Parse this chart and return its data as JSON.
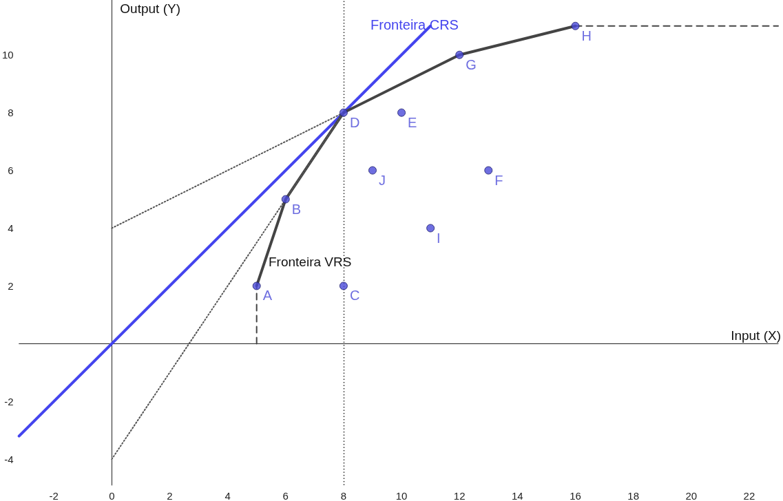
{
  "chart_data": {
    "type": "line",
    "xlabel": "Input (X)",
    "ylabel": "Output (Y)",
    "xlim": [
      -3.2,
      23
    ],
    "ylim": [
      -4.9,
      11.9
    ],
    "xticks": [
      -2,
      0,
      2,
      4,
      6,
      8,
      10,
      12,
      14,
      16,
      18,
      20,
      22
    ],
    "yticks": [
      -4,
      -2,
      2,
      4,
      6,
      8,
      10
    ],
    "grid": false,
    "legend": false,
    "series": [
      {
        "name": "Fronteira CRS",
        "color": "#4444ee",
        "x": [
          -3.2,
          11
        ],
        "values": [
          -3.2,
          11
        ],
        "marker": "none",
        "line_style": "solid"
      },
      {
        "color": "#444444",
        "x": [
          5,
          6,
          8,
          12,
          16
        ],
        "values": [
          2,
          5,
          8,
          10,
          11
        ],
        "marker": "none",
        "line_style": "solid"
      },
      {
        "type": "line",
        "color": "#444444",
        "x": [
          16,
          23
        ],
        "values": [
          11,
          11
        ],
        "marker": "none",
        "line_style": "dashed"
      },
      {
        "type": "line",
        "color": "#444444",
        "x": [
          5,
          5
        ],
        "values": [
          0,
          2
        ],
        "marker": "none",
        "line_style": "dashed"
      },
      {
        "type": "line",
        "color": "#555555",
        "x": [
          0,
          8
        ],
        "values": [
          4,
          8
        ],
        "marker": "none",
        "line_style": "dotted"
      },
      {
        "type": "line",
        "color": "#555555",
        "x": [
          0,
          8
        ],
        "values": [
          -4,
          8
        ],
        "marker": "none",
        "line_style": "dotted"
      },
      {
        "type": "scatter",
        "color": "#4a4ad8",
        "x": [
          5,
          6,
          8,
          8,
          10,
          13,
          12,
          16,
          11,
          9
        ],
        "values": [
          2,
          5,
          2,
          8,
          8,
          6,
          10,
          11,
          4,
          6
        ],
        "marker": "circle"
      }
    ],
    "ref_lines": [
      {
        "axis": "x",
        "value": 8,
        "color": "#000000",
        "line_style": "dotted"
      }
    ],
    "annotations": [
      {
        "text": "A",
        "x": 5,
        "y": 2
      },
      {
        "text": "B",
        "x": 6,
        "y": 5
      },
      {
        "text": "C",
        "x": 8,
        "y": 2
      },
      {
        "text": "D",
        "x": 8,
        "y": 8
      },
      {
        "text": "E",
        "x": 10,
        "y": 8
      },
      {
        "text": "F",
        "x": 13,
        "y": 6
      },
      {
        "text": "G",
        "x": 12,
        "y": 10
      },
      {
        "text": "H",
        "x": 16,
        "y": 11
      },
      {
        "text": "I",
        "x": 11,
        "y": 4
      },
      {
        "text": "J",
        "x": 9,
        "y": 6
      },
      "Fronteira VRS"
    ]
  }
}
